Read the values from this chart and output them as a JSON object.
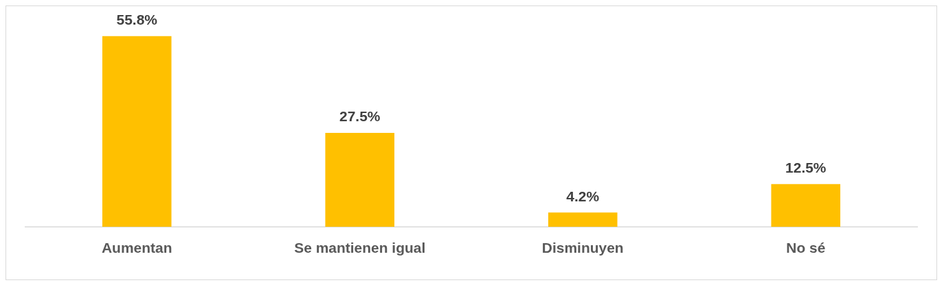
{
  "chart_data": {
    "type": "bar",
    "categories": [
      "Aumentan",
      "Se mantienen igual",
      "Disminuyen",
      "No sé"
    ],
    "values": [
      55.8,
      27.5,
      4.2,
      12.5
    ],
    "value_labels": [
      "55.8%",
      "27.5%",
      "4.2%",
      "12.5%"
    ],
    "color": "#ffc000",
    "grid": false,
    "legend": false
  }
}
